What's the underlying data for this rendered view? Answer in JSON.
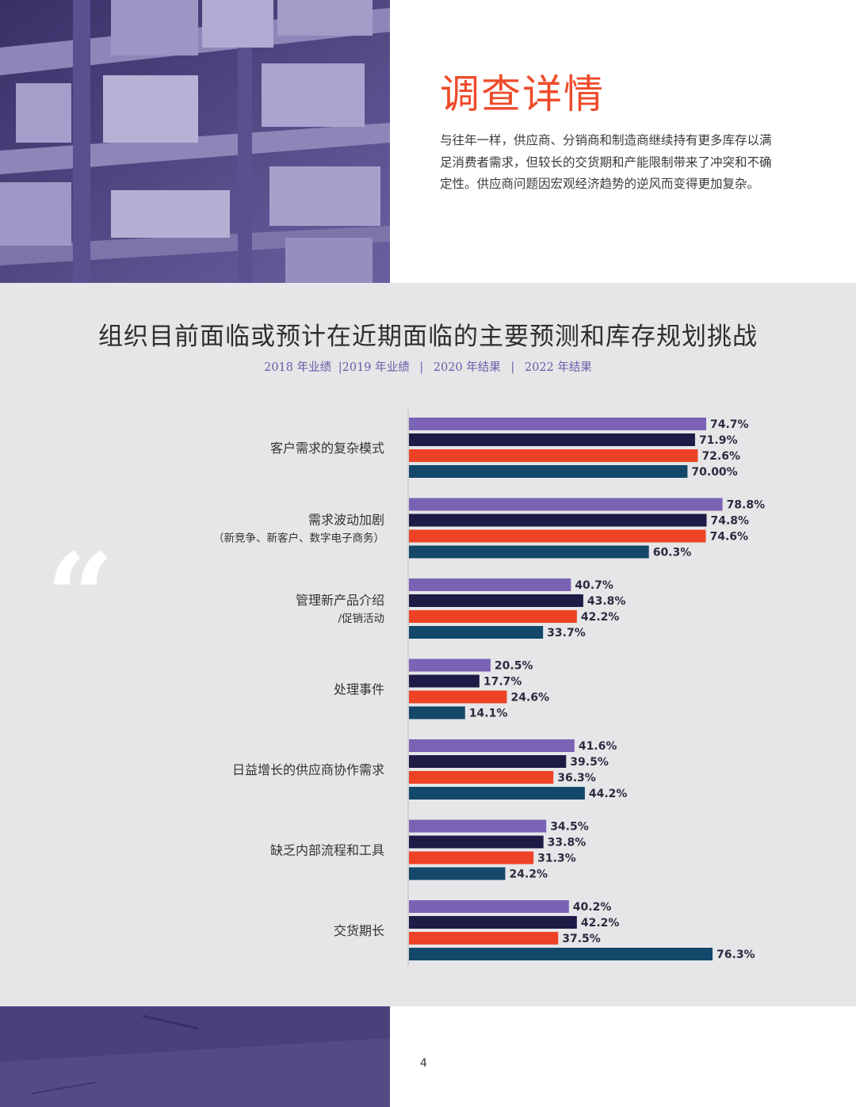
{
  "header": {
    "heading": "调查详情",
    "intro": "与往年一样，供应商、分销商和制造商继续持有更多库存以满足消费者需求，但较长的交货期和产能限制带来了冲突和不确定性。供应商问题因宏观经济趋势的逆风而变得更加复杂。"
  },
  "chart_section": {
    "legend": {
      "y2018": "2018 年业绩",
      "y2019": "|2019 年业绩",
      "sep1": "|",
      "y2020": "2020 年结果",
      "sep2": "|",
      "y2022": "2022 年结果"
    },
    "quote_glyph": "“"
  },
  "colors": {
    "accent": "#ee4b2b",
    "series_2018": "#7a63b5",
    "series_2019": "#1f1b47",
    "series_2020": "#ee4226",
    "series_2022": "#13486a",
    "panel_bg": "#e6e6e8"
  },
  "chart_data": {
    "type": "bar",
    "orientation": "horizontal",
    "title": "组织目前面临或预计在近期面临的主要预测和库存规划挑战",
    "xlim": [
      0,
      100
    ],
    "categories": [
      [
        "客户需求的复杂模式"
      ],
      [
        "需求波动加剧",
        "（新竞争、新客户、数字电子商务）"
      ],
      [
        "管理新产品介绍",
        "/促销活动"
      ],
      [
        "处理事件"
      ],
      [
        "日益增长的供应商协作需求"
      ],
      [
        "缺乏内部流程和工具"
      ],
      [
        "交货期长"
      ]
    ],
    "series": [
      {
        "name": "2018 年业绩",
        "color": "#7a63b5",
        "values": [
          74.7,
          78.8,
          40.7,
          20.5,
          41.6,
          34.5,
          40.2
        ],
        "labels": [
          "74.7%",
          "78.8%",
          "40.7%",
          "20.5%",
          "41.6%",
          "34.5%",
          "40.2%"
        ]
      },
      {
        "name": "2019 年业绩",
        "color": "#1f1b47",
        "values": [
          71.9,
          74.8,
          43.8,
          17.7,
          39.5,
          33.8,
          42.2
        ],
        "labels": [
          "71.9%",
          "74.8%",
          "43.8%",
          "17.7%",
          "39.5%",
          "33.8%",
          "42.2%"
        ]
      },
      {
        "name": "2020 年结果",
        "color": "#ee4226",
        "values": [
          72.6,
          74.6,
          42.2,
          24.6,
          36.3,
          31.3,
          37.5
        ],
        "labels": [
          "72.6%",
          "74.6%",
          "42.2%",
          "24.6%",
          "36.3%",
          "31.3%",
          "37.5%"
        ]
      },
      {
        "name": "2022 年结果",
        "color": "#13486a",
        "values": [
          70.0,
          60.3,
          33.7,
          14.1,
          44.2,
          24.2,
          76.3
        ],
        "labels": [
          "70.00%",
          "60.3%",
          "33.7%",
          "14.1%",
          "44.2%",
          "24.2%",
          "76.3%"
        ]
      }
    ]
  },
  "page": {
    "number": "4"
  }
}
